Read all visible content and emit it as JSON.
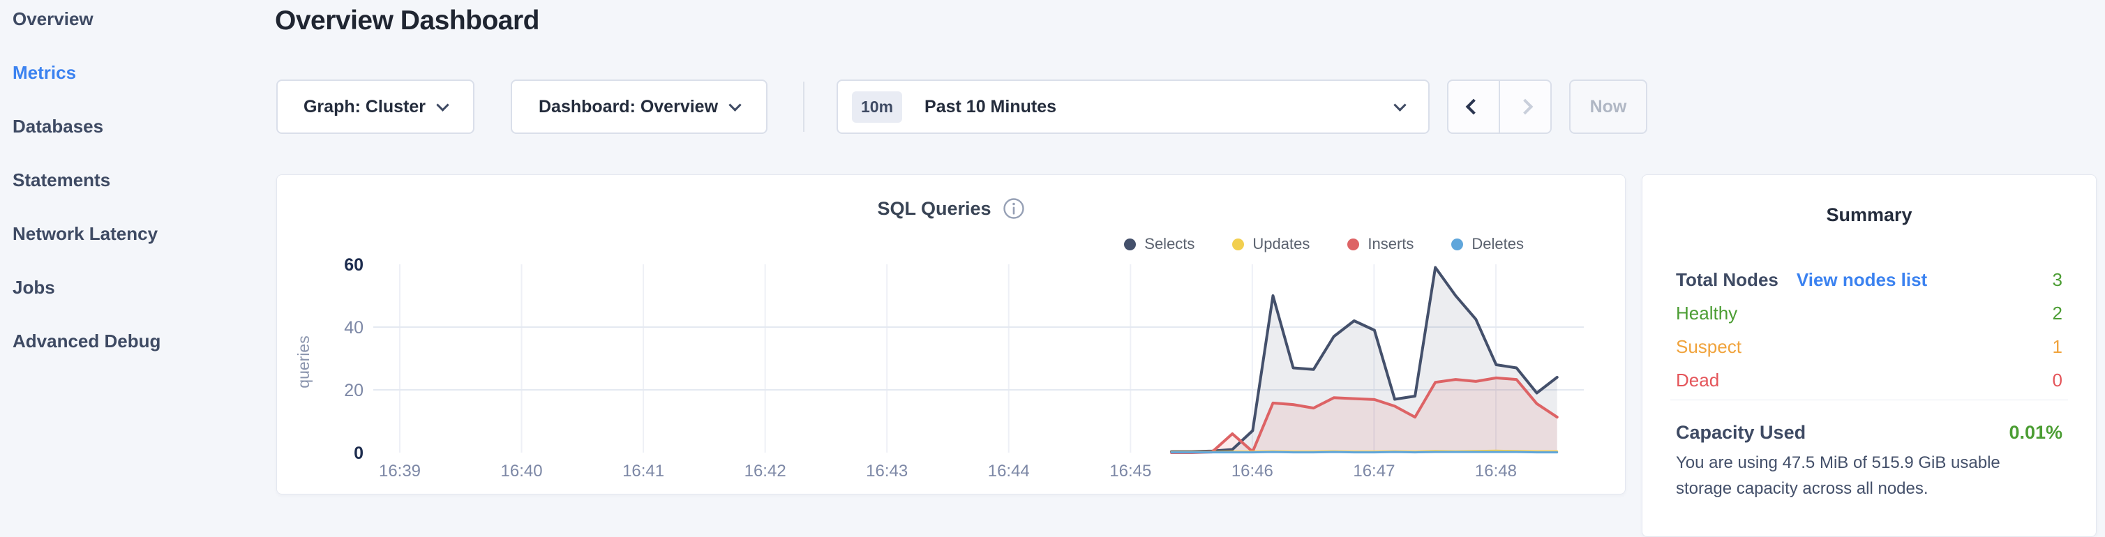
{
  "sidebar": {
    "items": [
      {
        "label": "Overview",
        "active": false
      },
      {
        "label": "Metrics",
        "active": true
      },
      {
        "label": "Databases",
        "active": false
      },
      {
        "label": "Statements",
        "active": false
      },
      {
        "label": "Network Latency",
        "active": false
      },
      {
        "label": "Jobs",
        "active": false
      },
      {
        "label": "Advanced Debug",
        "active": false
      }
    ]
  },
  "header": {
    "title": "Overview Dashboard"
  },
  "controls": {
    "graph_dropdown": {
      "label": "Graph: Cluster"
    },
    "dashboard_dropdown": {
      "label": "Dashboard: Overview"
    },
    "time_picker": {
      "badge": "10m",
      "label": "Past 10 Minutes"
    },
    "prev_button": {
      "enabled": true
    },
    "next_button": {
      "enabled": false
    },
    "now_button": {
      "label": "Now",
      "enabled": false
    }
  },
  "chart_data": {
    "type": "line",
    "title": "SQL Queries",
    "info_icon": "info-circle-icon",
    "ylabel": "queries",
    "ylim": [
      0,
      60
    ],
    "y_ticks": [
      0,
      20,
      40,
      60
    ],
    "x_labels": [
      "16:39",
      "16:40",
      "16:41",
      "16:42",
      "16:43",
      "16:44",
      "16:45",
      "16:46",
      "16:47",
      "16:48"
    ],
    "grid": true,
    "legend_position": "top-right",
    "sample_times": [
      "16:45:20",
      "16:45:30",
      "16:45:40",
      "16:45:50",
      "16:46:00",
      "16:46:10",
      "16:46:20",
      "16:46:30",
      "16:46:40",
      "16:46:50",
      "16:47:00",
      "16:47:10",
      "16:47:20",
      "16:47:30",
      "16:47:40",
      "16:47:50",
      "16:48:00",
      "16:48:10",
      "16:48:20",
      "16:48:30"
    ],
    "series": [
      {
        "name": "Selects",
        "color": "#44506b",
        "fill": "rgba(68,80,107,0.10)",
        "values": [
          0.3,
          0.3,
          0.5,
          1,
          7,
          50,
          27,
          26.5,
          37,
          42,
          39,
          17,
          18,
          59,
          50,
          42.5,
          28,
          27,
          19,
          24
        ]
      },
      {
        "name": "Updates",
        "color": "#f2cf4f",
        "fill": "none",
        "values": [
          0.2,
          0.2,
          0.2,
          0.3,
          0.3,
          0.4,
          0.3,
          0.3,
          0.4,
          0.3,
          0.3,
          0.4,
          0.3,
          0.5,
          0.4,
          0.5,
          0.6,
          0.5,
          0.4,
          0.4
        ]
      },
      {
        "name": "Inserts",
        "color": "#dd6365",
        "fill": "rgba(221,99,101,0.12)",
        "values": [
          0,
          0,
          0.2,
          6,
          0.3,
          15.8,
          15.3,
          14.2,
          17.5,
          17.2,
          16.9,
          14.8,
          11.3,
          22.4,
          23.3,
          22.7,
          23.8,
          23.3,
          15.6,
          11.3
        ]
      },
      {
        "name": "Deletes",
        "color": "#60a6db",
        "fill": "none",
        "values": [
          0.1,
          0.1,
          0.1,
          0.1,
          0.1,
          0.2,
          0.1,
          0.1,
          0.2,
          0.1,
          0.1,
          0.2,
          0.1,
          0.2,
          0.2,
          0.2,
          0.2,
          0.2,
          0.1,
          0.1
        ]
      }
    ]
  },
  "summary": {
    "title": "Summary",
    "link_color": "#3b82f0",
    "rows": [
      {
        "label": "Total Nodes",
        "link": "View nodes list",
        "value": "3",
        "label_color": "#3e4a63",
        "value_color": "#4b9d33"
      },
      {
        "label": "Healthy",
        "value": "2",
        "label_color": "#4b9d33",
        "value_color": "#4b9d33"
      },
      {
        "label": "Suspect",
        "value": "1",
        "label_color": "#f0a33c",
        "value_color": "#f0a33c"
      },
      {
        "label": "Dead",
        "value": "0",
        "label_color": "#e4555a",
        "value_color": "#e4555a"
      }
    ],
    "capacity": {
      "label": "Capacity Used",
      "value": "0.01%",
      "value_color": "#4b9d33",
      "caption": "You are using 47.5 MiB of 515.9 GiB usable storage capacity across all nodes."
    }
  },
  "colors": {
    "accent_blue": "#3b82f0",
    "page_bg": "#f4f6fa",
    "card_bg": "#ffffff",
    "text_dark": "#242c3c",
    "axis_strong": "#1d2c4e",
    "axis_muted": "#7d88a6"
  }
}
